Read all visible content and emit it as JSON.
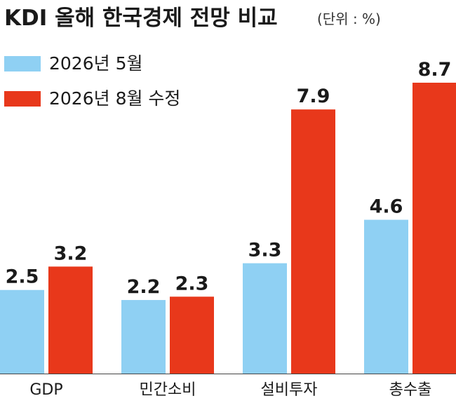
{
  "chart_data": {
    "type": "bar",
    "title": "KDI 올해 한국경제 전망 비교",
    "unit_note": "(단위 : %)",
    "categories": [
      "GDP",
      "민간소비",
      "설비투자",
      "총수출"
    ],
    "series": [
      {
        "name": "2026년 5월",
        "color": "#8fd0f3",
        "values": [
          2.5,
          2.2,
          3.3,
          4.6
        ]
      },
      {
        "name": "2026년 8월 수정",
        "color": "#e8381b",
        "values": [
          3.2,
          2.3,
          7.9,
          8.7
        ]
      }
    ],
    "value_labels": [
      [
        "2.5",
        "2.2",
        "3.3",
        "4.6"
      ],
      [
        "3.2",
        "2.3",
        "7.9",
        "8.7"
      ]
    ],
    "ylim": [
      0,
      9.5
    ],
    "grid": false,
    "legend_position": "top-left",
    "colors": {
      "text": "#1a1a1a",
      "baseline": "#444444"
    }
  }
}
